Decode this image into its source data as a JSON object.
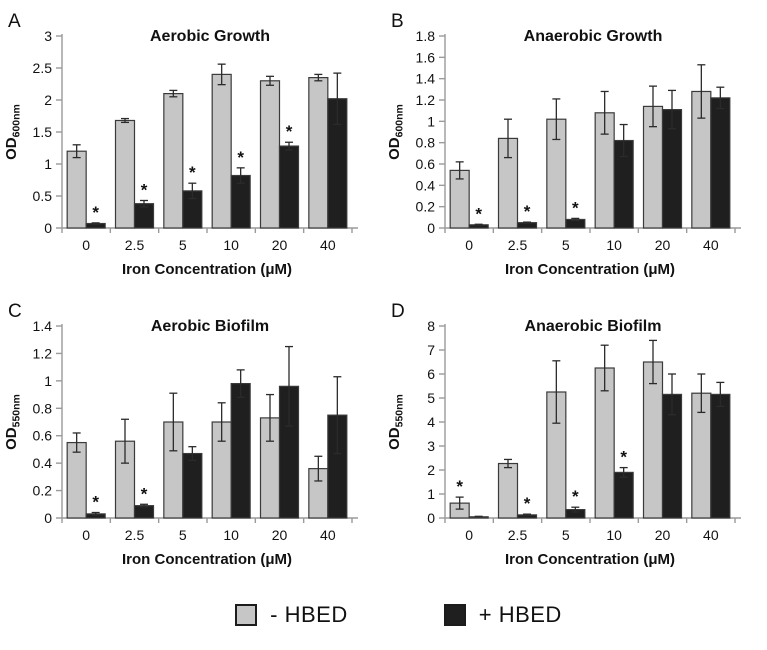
{
  "page": {
    "background": "#ffffff"
  },
  "style": {
    "bar_fill_minus": "#c6c6c6",
    "bar_fill_plus": "#1f1f1f",
    "bar_stroke": "#3a3a3a",
    "axis_color": "#9a9a9a",
    "error_color": "#2b2b2b",
    "text_color": "#111111",
    "star_color": "#111111"
  },
  "legend": {
    "items": [
      {
        "label": "- HBED",
        "color": "#c6c6c6"
      },
      {
        "label": "+ HBED",
        "color": "#1f1f1f"
      }
    ]
  },
  "chart_data": [
    {
      "type": "bar",
      "panel_label": "A",
      "title": "Aerobic Growth",
      "xlabel": "Iron Concentration (μM)",
      "ylabel": "OD",
      "ylabel_subscript": "600nm",
      "ylim": [
        0,
        3
      ],
      "ytick_step": 0.5,
      "grid": false,
      "categories": [
        "0",
        "2.5",
        "5",
        "10",
        "20",
        "40"
      ],
      "series": [
        {
          "name": "- HBED",
          "values": [
            1.2,
            1.68,
            2.1,
            2.4,
            2.3,
            2.35
          ],
          "errors": [
            0.1,
            0.03,
            0.05,
            0.16,
            0.07,
            0.05
          ],
          "significant": [
            false,
            false,
            false,
            false,
            false,
            false
          ]
        },
        {
          "name": "+ HBED",
          "values": [
            0.07,
            0.38,
            0.58,
            0.82,
            1.28,
            2.02
          ],
          "errors": [
            0.01,
            0.05,
            0.12,
            0.12,
            0.06,
            0.4
          ],
          "significant": [
            true,
            true,
            true,
            true,
            true,
            false
          ]
        }
      ]
    },
    {
      "type": "bar",
      "panel_label": "B",
      "title": "Anaerobic Growth",
      "xlabel": "Iron Concentration (μM)",
      "ylabel": "OD",
      "ylabel_subscript": "600nm",
      "ylim": [
        0,
        1.8
      ],
      "ytick_step": 0.2,
      "grid": false,
      "categories": [
        "0",
        "2.5",
        "5",
        "10",
        "20",
        "40"
      ],
      "series": [
        {
          "name": "- HBED",
          "values": [
            0.54,
            0.84,
            1.02,
            1.08,
            1.14,
            1.28
          ],
          "errors": [
            0.08,
            0.18,
            0.19,
            0.2,
            0.19,
            0.25
          ],
          "significant": [
            false,
            false,
            false,
            false,
            false,
            false
          ]
        },
        {
          "name": "+ HBED",
          "values": [
            0.03,
            0.05,
            0.08,
            0.82,
            1.11,
            1.22
          ],
          "errors": [
            0.005,
            0.005,
            0.01,
            0.15,
            0.18,
            0.1
          ],
          "significant": [
            true,
            true,
            true,
            false,
            false,
            false
          ]
        }
      ]
    },
    {
      "type": "bar",
      "panel_label": "C",
      "title": "Aerobic Biofilm",
      "xlabel": "Iron Concentration (μM)",
      "ylabel": "OD",
      "ylabel_subscript": "550nm",
      "ylim": [
        0,
        1.4
      ],
      "ytick_step": 0.2,
      "grid": false,
      "categories": [
        "0",
        "2.5",
        "5",
        "10",
        "20",
        "40"
      ],
      "series": [
        {
          "name": "- HBED",
          "values": [
            0.55,
            0.56,
            0.7,
            0.7,
            0.73,
            0.36
          ],
          "errors": [
            0.07,
            0.16,
            0.21,
            0.14,
            0.17,
            0.09
          ],
          "significant": [
            false,
            false,
            false,
            false,
            false,
            false
          ]
        },
        {
          "name": "+ HBED",
          "values": [
            0.03,
            0.09,
            0.47,
            0.98,
            0.96,
            0.75
          ],
          "errors": [
            0.01,
            0.01,
            0.05,
            0.1,
            0.29,
            0.28
          ],
          "significant": [
            true,
            true,
            false,
            false,
            false,
            false
          ]
        }
      ]
    },
    {
      "type": "bar",
      "panel_label": "D",
      "title": "Anaerobic Biofilm",
      "xlabel": "Iron Concentration (μM)",
      "ylabel": "OD",
      "ylabel_subscript": "550nm",
      "ylim": [
        0,
        8
      ],
      "ytick_step": 1,
      "grid": false,
      "categories": [
        "0",
        "2.5",
        "5",
        "10",
        "20",
        "40"
      ],
      "series": [
        {
          "name": "- HBED",
          "values": [
            0.62,
            2.27,
            5.25,
            6.25,
            6.5,
            5.2
          ],
          "errors": [
            0.25,
            0.17,
            1.3,
            0.95,
            0.9,
            0.8
          ],
          "significant": [
            true,
            false,
            false,
            false,
            false,
            false
          ]
        },
        {
          "name": "+ HBED",
          "values": [
            0.05,
            0.13,
            0.35,
            1.9,
            5.15,
            5.15
          ],
          "errors": [
            0.02,
            0.03,
            0.1,
            0.2,
            0.85,
            0.5
          ],
          "significant": [
            false,
            true,
            true,
            true,
            false,
            false
          ]
        }
      ]
    }
  ]
}
